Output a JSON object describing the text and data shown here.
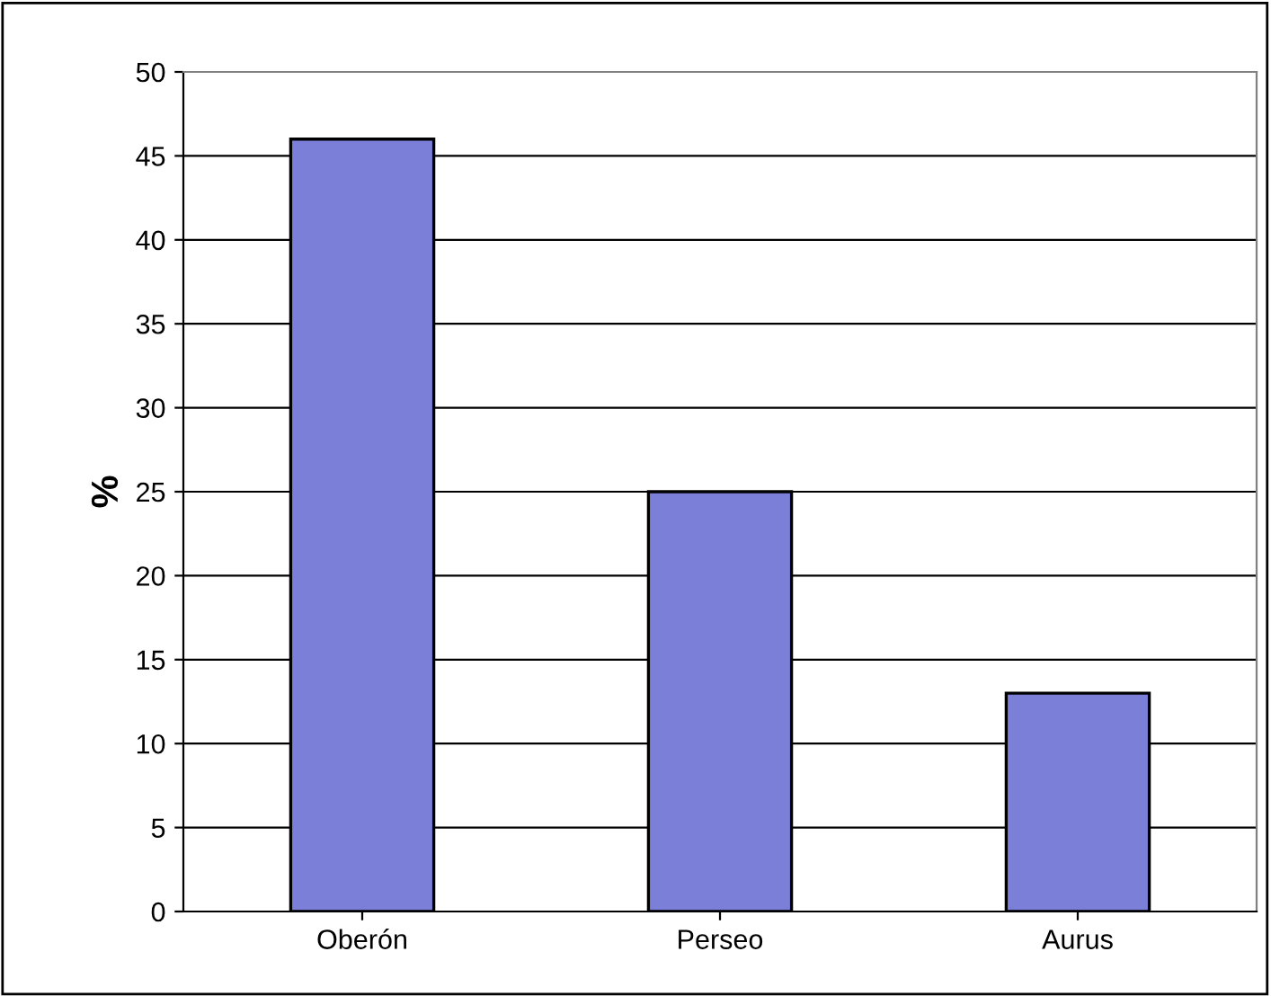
{
  "chart_data": {
    "type": "bar",
    "ylabel": "%",
    "categories": [
      "Oberón",
      "Perseo",
      "Aurus"
    ],
    "values": [
      46,
      25,
      13
    ],
    "color": "#7b7fd8",
    "ylim": [
      0,
      50
    ],
    "yticks": [
      0,
      5,
      10,
      15,
      20,
      25,
      30,
      35,
      40,
      45,
      50
    ],
    "grid": "y"
  }
}
